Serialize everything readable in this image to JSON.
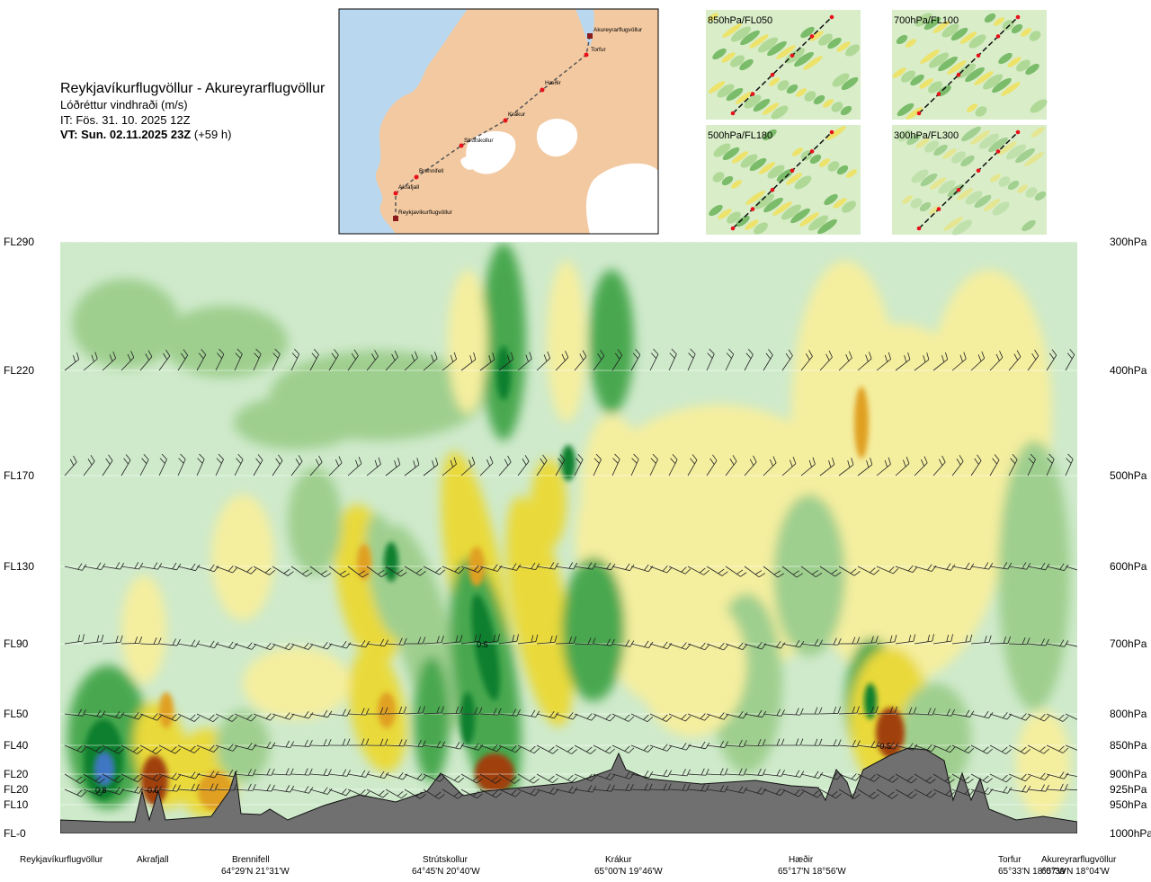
{
  "header": {
    "route_title": "Reykjavíkurflugvöllur - Akureyrarflugvöllur",
    "parameter": "Lóðréttur vindhraði (m/s)",
    "init_time": "IT: Fös. 31. 10. 2025 12Z",
    "valid_time": "VT: Sun. 02.11.2025 23Z",
    "lead_time": "(+59 h)"
  },
  "overview_map": {
    "stations": [
      "Reykjavíkurflugvöllur",
      "Akrafjall",
      "Brennifell",
      "Strútskollur",
      "Krákur",
      "Hæðir",
      "Torfur",
      "Akureyrarflugvöllur"
    ],
    "colors": {
      "sea": "#b9d7ee",
      "land": "#f3c9a1",
      "ice": "#ffffff",
      "route": "#555555",
      "station": "#e8111b"
    }
  },
  "level_panels": [
    {
      "label": "850hPa/FL050"
    },
    {
      "label": "700hPa/FL100"
    },
    {
      "label": "500hPa/FL180"
    },
    {
      "label": "300hPa/FL300"
    }
  ],
  "chart_data": {
    "type": "heatmap",
    "title": "Lóðréttur vindhraði (m/s)",
    "y_left_ticks": [
      "FL290",
      "FL220",
      "FL170",
      "FL130",
      "FL90",
      "FL50",
      "FL40",
      "FL20",
      "FL20",
      "FL10",
      "FL-0"
    ],
    "y_right_ticks": [
      "300hPa",
      "400hPa",
      "500hPa",
      "600hPa",
      "700hPa",
      "800hPa",
      "850hPa",
      "900hPa",
      "925hPa",
      "950hPa",
      "1000hPa"
    ],
    "pressure_levels_hpa": [
      300,
      400,
      500,
      600,
      700,
      800,
      850,
      900,
      925,
      950,
      1000
    ],
    "x_stations": [
      {
        "name": "Reykjavíkurflugvöllur",
        "coord": ""
      },
      {
        "name": "Akrafjall",
        "coord": ""
      },
      {
        "name": "Brennifell",
        "coord": "64°29'N 21°31'W"
      },
      {
        "name": "Strútskollur",
        "coord": "64°45'N 20°40'W"
      },
      {
        "name": "Krákur",
        "coord": "65°00'N 19°46'W"
      },
      {
        "name": "Hæðir",
        "coord": "65°17'N 18°56'W"
      },
      {
        "name": "Torfur",
        "coord": "65°33'N 18°07'W"
      },
      {
        "name": "Akureyrarflugvöllur",
        "coord": "65°39'N 18°04'W"
      }
    ],
    "contour_labels": [
      {
        "text": "0.8",
        "station_fraction": 0.04,
        "level_hpa": 925,
        "sign": "up"
      },
      {
        "text": "-0.6",
        "station_fraction": 0.09,
        "level_hpa": 925,
        "sign": "down"
      },
      {
        "text": "0.5",
        "station_fraction": 0.415,
        "level_hpa": 700,
        "sign": "up"
      },
      {
        "text": "-0.5",
        "station_fraction": 0.81,
        "level_hpa": 850,
        "sign": "down"
      }
    ],
    "colors": {
      "strong_up": "#0a7f2e",
      "up": "#4aa84f",
      "weak_up": "#9fcf8f",
      "neutral": "#cfeacb",
      "weak_down": "#f4ee9f",
      "down": "#e9d93a",
      "strong_down": "#e0a020",
      "very_strong_down": "#a04010",
      "terrain": "#707070",
      "max_up": "#3f77c4"
    }
  }
}
